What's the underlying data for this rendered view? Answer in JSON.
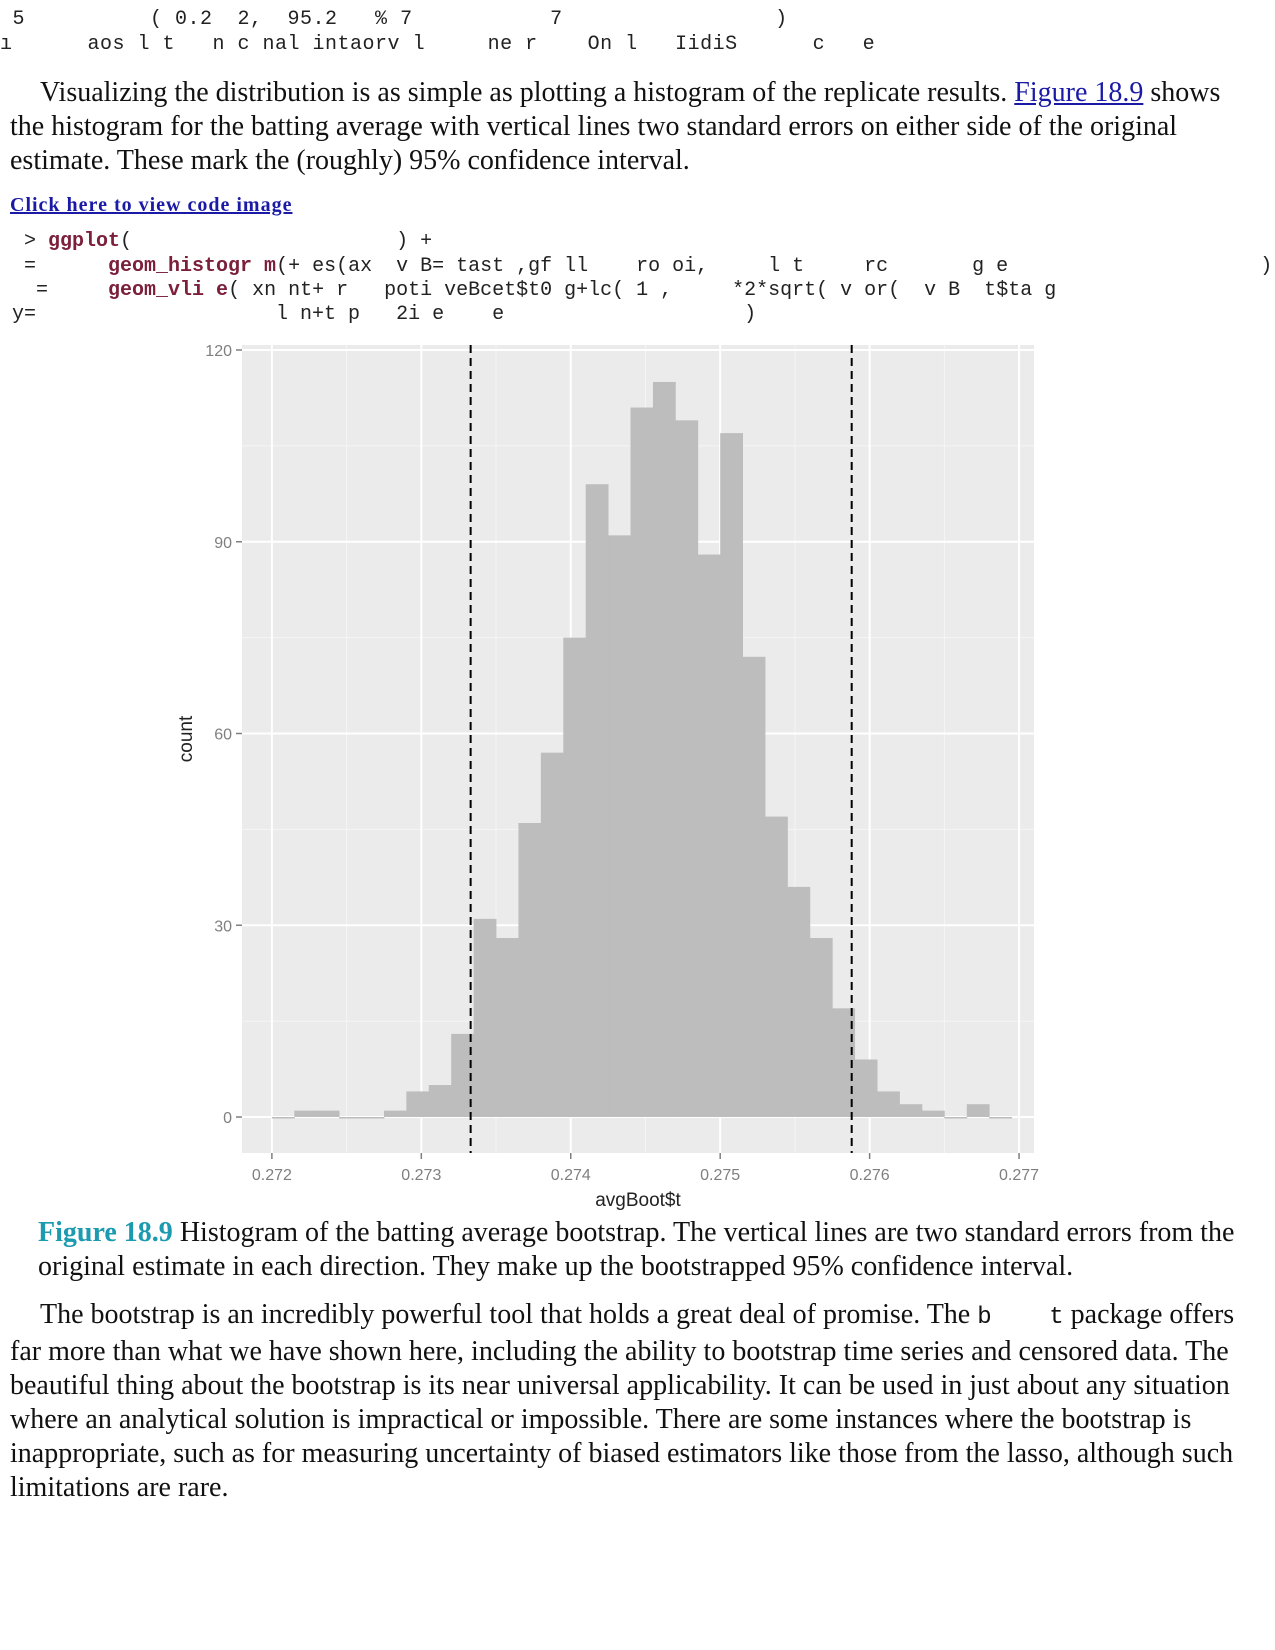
{
  "garbled_top": {
    "line1": " 5          ( 0.2  2,  95.2   % 7           7                 )",
    "line2": "ı      aos l t   n c nal intaorv l     ne r    On l   IidiS      c   e"
  },
  "intro": {
    "text_before_link": "Visualizing the distribution is as simple as plotting a histogram of the replicate results. ",
    "link": "Figure 18.9",
    "text_after_link": " shows the histogram for the batting average with vertical lines two standard errors on either side of the original estimate. These mark the (roughly) 95% confidence interval."
  },
  "click_code_link": "Click here to view code image",
  "code": {
    "line1_prompt": "  > ",
    "line1_fn": "ggplot",
    "line1_rest": "(                      ) +",
    "line2_prefix": "  =      ",
    "line2_fn": "geom_histogr m",
    "line2_rest": "(+ es(ax  v B= tast ,gf ll    ro oi,     l t     rc       g e                     ) +",
    "line3_prefix": "   =     ",
    "line3_fn": "geom_vli e",
    "line3_rest": "( xn nt+ r   poti veBcet$t0 g+lc( 1 ,     *2*sqrt( v or(  v B  t$ta g",
    "line4": " y=                    l n+t p   2i e    e                    )"
  },
  "chart_data": {
    "type": "bar",
    "xlabel": "avgBoot$t",
    "ylabel": "count",
    "xlim": [
      0.2718,
      0.2771
    ],
    "ylim": [
      0,
      120
    ],
    "x_ticks": [
      "0.272",
      "0.273",
      "0.274",
      "0.275",
      "0.276",
      "0.277"
    ],
    "y_ticks": [
      "0",
      "30",
      "60",
      "90",
      "120"
    ],
    "bin_width": 0.00015,
    "bin_start": 0.272,
    "values": [
      0,
      1,
      1,
      0,
      0,
      1,
      4,
      5,
      13,
      31,
      28,
      46,
      57,
      75,
      99,
      91,
      111,
      115,
      109,
      88,
      107,
      72,
      47,
      36,
      28,
      17,
      9,
      4,
      2,
      1,
      0,
      2,
      0
    ],
    "vlines": [
      0.27333,
      0.27588
    ],
    "grid": true,
    "colors": {
      "panel": "#ebebeb",
      "grid": "#ffffff",
      "bar": "#bdbdbd",
      "vline": "#000000"
    }
  },
  "caption": {
    "fig_label": "Figure 18.9",
    "text": " Histogram of the batting average bootstrap. The vertical lines are two standard errors from the original estimate in each direction. They make up the bootstrapped 95% confidence interval."
  },
  "closing": {
    "before_code": "The bootstrap is an incredibly powerful tool that holds a great deal of promise. The ",
    "code_word": "b    t",
    "after_code": " package offers far more than what we have shown here, including the ability to bootstrap time series and censored data. The beautiful thing about the bootstrap is its near universal applicability. It can be used in just about any situation where an analytical solution is impractical or impossible. There are some instances where the bootstrap is inappropriate, such as for measuring uncertainty of biased estimators like those from the lasso, although such limitations are rare."
  }
}
